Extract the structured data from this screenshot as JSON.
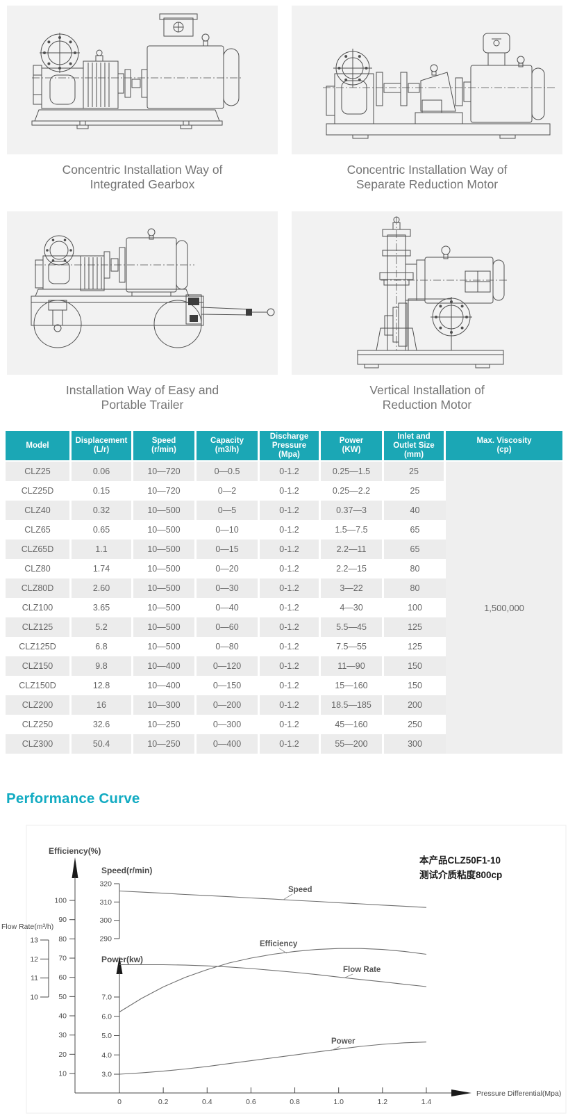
{
  "colors": {
    "teal": "#1BA7B5",
    "title_teal": "#12ABC2",
    "row_gray": "#ECECEC",
    "visc_gray": "#EFEFEF"
  },
  "drawings": {
    "items": [
      {
        "line1": "Concentric Installation Way of",
        "line2": "Integrated Gearbox"
      },
      {
        "line1": "Concentric Installation Way of",
        "line2": "Separate Reduction Motor"
      },
      {
        "line1": "Installation Way of Easy and",
        "line2": "Portable Trailer"
      },
      {
        "line1": "Vertical Installation of",
        "line2": "Reduction Motor"
      }
    ]
  },
  "table": {
    "headers": [
      [
        "Model"
      ],
      [
        "Displacement",
        "(L/r)"
      ],
      [
        "Speed",
        "(r/min)"
      ],
      [
        "Capacity",
        "(m3/h)"
      ],
      [
        "Discharge",
        "Pressure",
        "(Mpa)"
      ],
      [
        "Power",
        "(KW)"
      ],
      [
        "Inlet and",
        "Outlet Size",
        "(mm)"
      ],
      [
        "Max. Viscosity",
        "(cp)"
      ]
    ],
    "rows": [
      [
        "CLZ25",
        "0.06",
        "10—720",
        "0—0.5",
        "0-1.2",
        "0.25—1.5",
        "25"
      ],
      [
        "CLZ25D",
        "0.15",
        "10—720",
        "0—2",
        "0-1.2",
        "0.25—2.2",
        "25"
      ],
      [
        "CLZ40",
        "0.32",
        "10—500",
        "0—5",
        "0-1.2",
        "0.37—3",
        "40"
      ],
      [
        "CLZ65",
        "0.65",
        "10—500",
        "0—10",
        "0-1.2",
        "1.5—7.5",
        "65"
      ],
      [
        "CLZ65D",
        "1.1",
        "10—500",
        "0—15",
        "0-1.2",
        "2.2—11",
        "65"
      ],
      [
        "CLZ80",
        "1.74",
        "10—500",
        "0—20",
        "0-1.2",
        "2.2—15",
        "80"
      ],
      [
        "CLZ80D",
        "2.60",
        "10—500",
        "0—30",
        "0-1.2",
        "3—22",
        "80"
      ],
      [
        "CLZ100",
        "3.65",
        "10—500",
        "0—40",
        "0-1.2",
        "4—30",
        "100"
      ],
      [
        "CLZ125",
        "5.2",
        "10—500",
        "0—60",
        "0-1.2",
        "5.5—45",
        "125"
      ],
      [
        "CLZ125D",
        "6.8",
        "10—500",
        "0—80",
        "0-1.2",
        "7.5—55",
        "125"
      ],
      [
        "CLZ150",
        "9.8",
        "10—400",
        "0—120",
        "0-1.2",
        "11—90",
        "150"
      ],
      [
        "CLZ150D",
        "12.8",
        "10—400",
        "0—150",
        "0-1.2",
        "15—160",
        "150"
      ],
      [
        "CLZ200",
        "16",
        "10—300",
        "0—200",
        "0-1.2",
        "18.5—185",
        "200"
      ],
      [
        "CLZ250",
        "32.6",
        "10—250",
        "0—300",
        "0-1.2",
        "45—160",
        "250"
      ],
      [
        "CLZ300",
        "50.4",
        "10—250",
        "0—400",
        "0-1.2",
        "55—200",
        "300"
      ]
    ],
    "max_viscosity": "1,500,000"
  },
  "section": {
    "title": "Performance Curve"
  },
  "chart_data": {
    "type": "line",
    "title": "Performance Curve",
    "xlabel": "Pressure Differential(Mpa)",
    "x_range": [
      0,
      1.4
    ],
    "grid": false,
    "annotation_lines": [
      "本产品CLZ50F1-10",
      "测试介质粘度800cp"
    ],
    "x_ticks": [
      {
        "v": 0,
        "t": "0"
      },
      {
        "v": 0.2,
        "t": "0.2"
      },
      {
        "v": 0.4,
        "t": "0.4"
      },
      {
        "v": 0.6,
        "t": "0.6"
      },
      {
        "v": 0.8,
        "t": "0.8"
      },
      {
        "v": 1,
        "t": "1.0"
      },
      {
        "v": 1.2,
        "t": "1.2"
      },
      {
        "v": 1.4,
        "t": "1.4"
      }
    ],
    "axes": {
      "efficiency": {
        "label": "Efficiency(%)",
        "range": [
          10,
          100
        ],
        "ticks": [
          {
            "v": 10,
            "t": "10"
          },
          {
            "v": 20,
            "t": "20"
          },
          {
            "v": 30,
            "t": "30"
          },
          {
            "v": 40,
            "t": "40"
          },
          {
            "v": 50,
            "t": "50"
          },
          {
            "v": 60,
            "t": "60"
          },
          {
            "v": 70,
            "t": "70"
          },
          {
            "v": 80,
            "t": "80"
          },
          {
            "v": 90,
            "t": "90"
          },
          {
            "v": 100,
            "t": "100"
          }
        ]
      },
      "speed": {
        "label": "Speed(r/min)",
        "range": [
          290,
          320
        ],
        "ticks": [
          {
            "v": 290,
            "t": "290"
          },
          {
            "v": 300,
            "t": "300"
          },
          {
            "v": 310,
            "t": "310"
          },
          {
            "v": 320,
            "t": "320"
          }
        ]
      },
      "flow": {
        "label": "Flow Rate(m³/h)",
        "range": [
          10,
          13
        ],
        "ticks": [
          {
            "v": 10,
            "t": "10"
          },
          {
            "v": 11,
            "t": "11"
          },
          {
            "v": 12,
            "t": "12"
          },
          {
            "v": 13,
            "t": "13"
          }
        ]
      },
      "power": {
        "label": "Power(kw)",
        "range": [
          3,
          7
        ],
        "ticks": [
          {
            "v": 3,
            "t": "3.0"
          },
          {
            "v": 4,
            "t": "4.0"
          },
          {
            "v": 5,
            "t": "5.0"
          },
          {
            "v": 6,
            "t": "6.0"
          },
          {
            "v": 7,
            "t": "7.0"
          }
        ]
      }
    },
    "series": [
      {
        "name": "Speed",
        "axis": "speed",
        "x": [
          0,
          0.1,
          0.2,
          0.3,
          0.4,
          0.5,
          0.6,
          0.7,
          0.8,
          0.9,
          1,
          1.1,
          1.2,
          1.3,
          1.4
        ],
        "values": [
          316,
          315.4,
          314.8,
          314.1,
          313.5,
          312.9,
          312.2,
          311.6,
          310.9,
          310.3,
          309.6,
          309,
          308.3,
          307.7,
          307
        ]
      },
      {
        "name": "Efficiency",
        "axis": "efficiency",
        "x": [
          0,
          0.1,
          0.2,
          0.3,
          0.4,
          0.5,
          0.6,
          0.7,
          0.8,
          0.9,
          1,
          1.1,
          1.2,
          1.3,
          1.4
        ],
        "values": [
          42,
          49,
          55,
          60,
          64,
          67.5,
          70,
          72,
          73.5,
          74.5,
          75,
          75,
          74.5,
          73.5,
          72
        ]
      },
      {
        "name": "Flow Rate",
        "axis": "flow",
        "x": [
          0,
          0.1,
          0.2,
          0.3,
          0.4,
          0.5,
          0.6,
          0.7,
          0.8,
          0.9,
          1,
          1.1,
          1.2,
          1.3,
          1.4
        ],
        "values": [
          11.7,
          11.7,
          11.7,
          11.68,
          11.64,
          11.58,
          11.5,
          11.4,
          11.3,
          11.18,
          11.05,
          10.92,
          10.8,
          10.67,
          10.55
        ]
      },
      {
        "name": "Power",
        "axis": "power",
        "x": [
          0,
          0.1,
          0.2,
          0.3,
          0.4,
          0.5,
          0.6,
          0.7,
          0.8,
          0.9,
          1,
          1.1,
          1.2,
          1.3,
          1.4
        ],
        "values": [
          3,
          3.07,
          3.16,
          3.27,
          3.4,
          3.55,
          3.7,
          3.85,
          4,
          4.15,
          4.3,
          4.44,
          4.55,
          4.63,
          4.67
        ]
      }
    ]
  }
}
